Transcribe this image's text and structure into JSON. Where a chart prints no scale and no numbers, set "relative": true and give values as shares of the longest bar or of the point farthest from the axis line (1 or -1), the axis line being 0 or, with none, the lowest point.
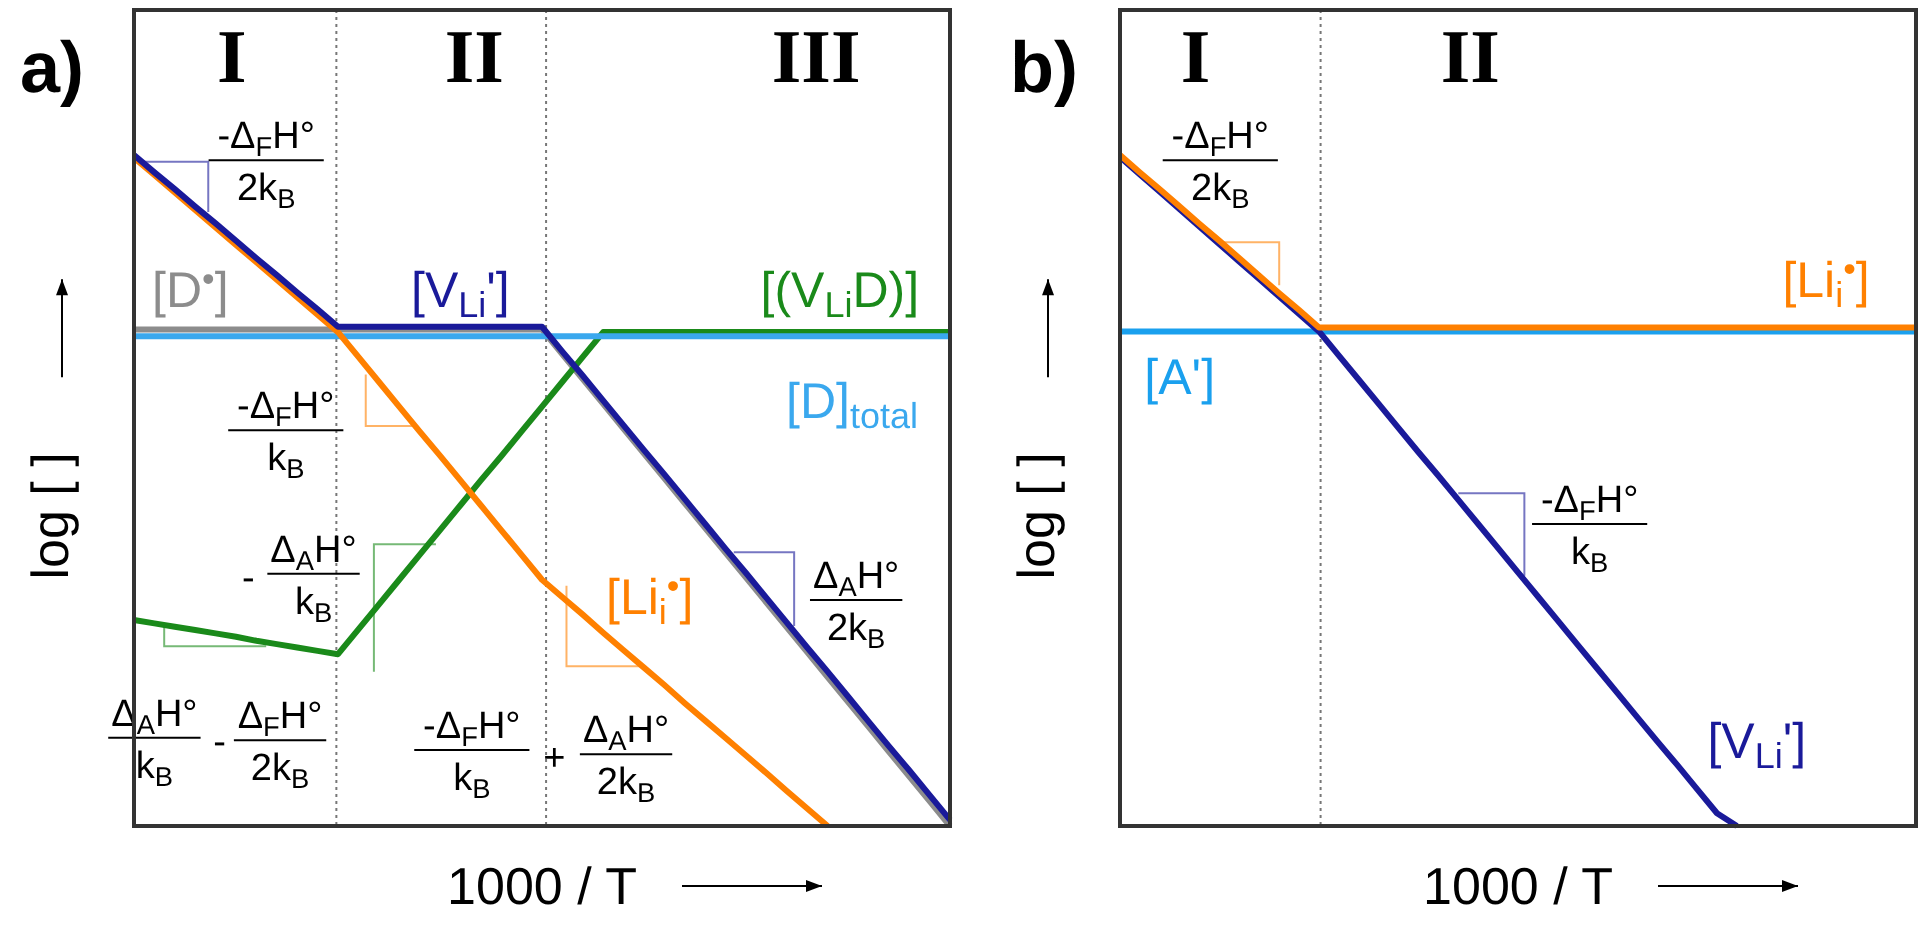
{
  "chart_data": [
    {
      "type": "line",
      "title": "a)",
      "xlabel": "1000 / T",
      "ylabel": "log [ ]",
      "relative": true,
      "categories": [
        null,
        null,
        null,
        null,
        null,
        null,
        null,
        null,
        null,
        null,
        null,
        null,
        null,
        null,
        null,
        null,
        null,
        null,
        null,
        null,
        null,
        null,
        null,
        null,
        null,
        null,
        null,
        null,
        null,
        null,
        null,
        null,
        null,
        null,
        null,
        null,
        null,
        null,
        null,
        null,
        null
      ],
      "series": [
        {
          "name": "[D$^{•}$]",
          "color": "#8c8c8c",
          "values": [
            0.74,
            0.74,
            0.74,
            0.74,
            0.74,
            0.74,
            0.74,
            0.74,
            0.74,
            0.74,
            0.74,
            0.74,
            0.74,
            0.74,
            0.74,
            0.74,
            0.74,
            0.74,
            0.74,
            0.74,
            0.74,
            0.703,
            0.666,
            0.629,
            0.592,
            0.555,
            0.518,
            0.481,
            0.444,
            0.407,
            0.37,
            0.333,
            0.296,
            0.259,
            0.222,
            0.185,
            0.148,
            0.111,
            0.074,
            0.037,
            0
          ]
        },
        {
          "name": "[(V$_{Li}$D)]",
          "color": "#1a8a1a",
          "values": [
            0.307,
            0.302,
            0.297,
            0.292,
            0.287,
            0.282,
            0.276,
            0.271,
            0.266,
            0.261,
            0.256,
            0.293,
            0.33,
            0.367,
            0.404,
            0.441,
            0.478,
            0.515,
            0.551,
            0.588,
            0.625,
            0.662,
            0.699,
            0.736,
            0.736,
            0.736,
            0.736,
            0.736,
            0.736,
            0.736,
            0.736,
            0.736,
            0.736,
            0.736,
            0.736,
            0.736,
            0.736,
            0.736,
            0.736,
            0.736,
            0.736
          ]
        },
        {
          "name": "[D]$_{total}$",
          "color": "#3aa8ee",
          "values": [
            0.73,
            0.73,
            0.73,
            0.73,
            0.73,
            0.73,
            0.73,
            0.73,
            0.73,
            0.73,
            0.73,
            0.73,
            0.73,
            0.73,
            0.73,
            0.73,
            0.73,
            0.73,
            0.73,
            0.73,
            0.73,
            0.73,
            0.73,
            0.73,
            0.73,
            0.73,
            0.73,
            0.73,
            0.73,
            0.73,
            0.73,
            0.73,
            0.73,
            0.73,
            0.73,
            0.73,
            0.73,
            0.73,
            0.73,
            0.73,
            0.73
          ]
        },
        {
          "name": "[Li$_{i}$$^{•}$]",
          "color": "#ff8000",
          "values": [
            0.996,
            0.97,
            0.944,
            0.918,
            0.892,
            0.866,
            0.84,
            0.814,
            0.788,
            0.762,
            0.736,
            0.699,
            0.662,
            0.625,
            0.588,
            0.552,
            0.515,
            0.478,
            0.441,
            0.404,
            0.367,
            0.341,
            0.315,
            0.288,
            0.262,
            0.236,
            0.21,
            0.183,
            0.157,
            0.131,
            0.105,
            0.079,
            0.052,
            0.026,
            0,
            null,
            null,
            null,
            null,
            null,
            null
          ]
        },
        {
          "name": "[V$_{Li}$']",
          "color": "#1a1a9a",
          "values": [
            1,
            0.974,
            0.949,
            0.923,
            0.898,
            0.872,
            0.846,
            0.821,
            0.795,
            0.77,
            0.744,
            0.744,
            0.744,
            0.744,
            0.744,
            0.744,
            0.744,
            0.744,
            0.744,
            0.744,
            0.744,
            0.707,
            0.671,
            0.634,
            0.597,
            0.56,
            0.524,
            0.487,
            0.45,
            0.413,
            0.377,
            0.34,
            0.303,
            0.266,
            0.23,
            0.193,
            0.156,
            0.119,
            0.083,
            0.046,
            0.009
          ]
        }
      ],
      "annotations": [
        "I",
        "II",
        "III",
        "-Δ$_{F}$H°\n2k$_{B}$",
        "-Δ$_{F}$H°\nk$_{B}$",
        "-",
        "Δ$_{A}$H°\nk$_{B}$",
        "Δ$_{A}$H°\nk$_{B}$",
        "-",
        "Δ$_{F}$H°\n2k$_{B}$",
        "-Δ$_{F}$H°\nk$_{B}$",
        "+",
        "Δ$_{A}$H°\n2k$_{B}$",
        "Δ$_{A}$H°\n2k$_{B}$"
      ]
    },
    {
      "type": "line",
      "title": "b)",
      "xlabel": "1000 / T",
      "ylabel": "log [ ]",
      "relative": true,
      "categories": [
        null,
        null,
        null,
        null,
        null,
        null,
        null,
        null,
        null,
        null,
        null,
        null,
        null,
        null,
        null,
        null,
        null,
        null,
        null,
        null,
        null,
        null,
        null,
        null,
        null,
        null,
        null,
        null,
        null,
        null,
        null,
        null,
        null,
        null,
        null,
        null,
        null,
        null,
        null,
        null,
        null
      ],
      "series": [
        {
          "name": "[A']",
          "color": "#1aa0ee",
          "values": [
            0.737,
            0.737,
            0.737,
            0.737,
            0.737,
            0.737,
            0.737,
            0.737,
            0.737,
            0.737,
            0.737,
            0.737,
            0.737,
            0.737,
            0.737,
            0.737,
            0.737,
            0.737,
            0.737,
            0.737,
            0.737,
            0.737,
            0.737,
            0.737,
            0.737,
            0.737,
            0.737,
            0.737,
            0.737,
            0.737,
            0.737,
            0.737,
            0.737,
            0.737,
            0.737,
            0.737,
            0.737,
            0.737,
            0.737,
            0.737,
            0.737
          ]
        },
        {
          "name": "[V$_{Li}$']",
          "color": "#1a1a9a",
          "values": [
            0.997,
            0.971,
            0.945,
            0.919,
            0.893,
            0.867,
            0.841,
            0.815,
            0.789,
            0.763,
            0.737,
            0.701,
            0.665,
            0.629,
            0.593,
            0.557,
            0.522,
            0.486,
            0.45,
            0.414,
            0.378,
            0.342,
            0.306,
            0.27,
            0.234,
            0.198,
            0.162,
            0.126,
            0.091,
            0.055,
            0.019,
            0,
            null,
            null,
            null,
            null,
            null,
            null,
            null,
            null,
            null
          ]
        },
        {
          "name": "[Li$_{i}$$^{•}$]",
          "color": "#ff8000",
          "values": [
            1,
            0.974,
            0.949,
            0.923,
            0.897,
            0.872,
            0.846,
            0.82,
            0.794,
            0.769,
            0.743,
            0.743,
            0.743,
            0.743,
            0.743,
            0.743,
            0.743,
            0.743,
            0.743,
            0.743,
            0.743,
            0.743,
            0.743,
            0.743,
            0.743,
            0.743,
            0.743,
            0.743,
            0.743,
            0.743,
            0.743,
            0.743,
            0.743,
            0.743,
            0.743,
            0.743,
            0.743,
            0.743,
            0.743,
            0.743,
            0.743
          ]
        }
      ],
      "annotations": [
        "I",
        "II",
        "-Δ$_{F}$H°\n2k$_{B}$",
        "-Δ$_{F}$H°\nk$_{B}$"
      ]
    }
  ]
}
